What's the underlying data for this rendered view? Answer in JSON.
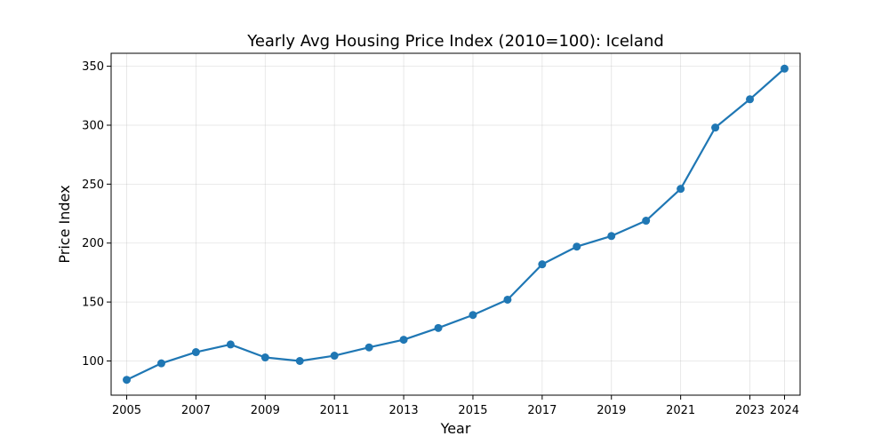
{
  "chart_data": {
    "type": "line",
    "title": "Yearly Avg Housing Price Index (2010=100): Iceland",
    "xlabel": "Year",
    "ylabel": "Price Index",
    "xlim": [
      2004.55,
      2024.45
    ],
    "ylim": [
      71,
      361
    ],
    "grid": true,
    "x_ticks": [
      2005,
      2007,
      2009,
      2011,
      2013,
      2015,
      2017,
      2019,
      2021,
      2023,
      2024
    ],
    "y_ticks": [
      100,
      150,
      200,
      250,
      300,
      350
    ],
    "x_tick_labels": [
      "2005",
      "2007",
      "2009",
      "2011",
      "2013",
      "2015",
      "2017",
      "2019",
      "2021",
      "2023",
      "2024"
    ],
    "y_tick_labels": [
      "100",
      "150",
      "200",
      "250",
      "300",
      "350"
    ],
    "line_color": "#1f77b4",
    "x": [
      2005,
      2006,
      2007,
      2008,
      2009,
      2010,
      2011,
      2012,
      2013,
      2014,
      2015,
      2016,
      2017,
      2018,
      2019,
      2020,
      2021,
      2022,
      2023,
      2024
    ],
    "values": [
      84,
      98,
      107.5,
      114,
      103,
      100,
      104.5,
      111.5,
      118,
      128,
      139,
      152,
      182,
      197,
      206,
      219,
      246,
      298,
      322,
      348
    ]
  }
}
